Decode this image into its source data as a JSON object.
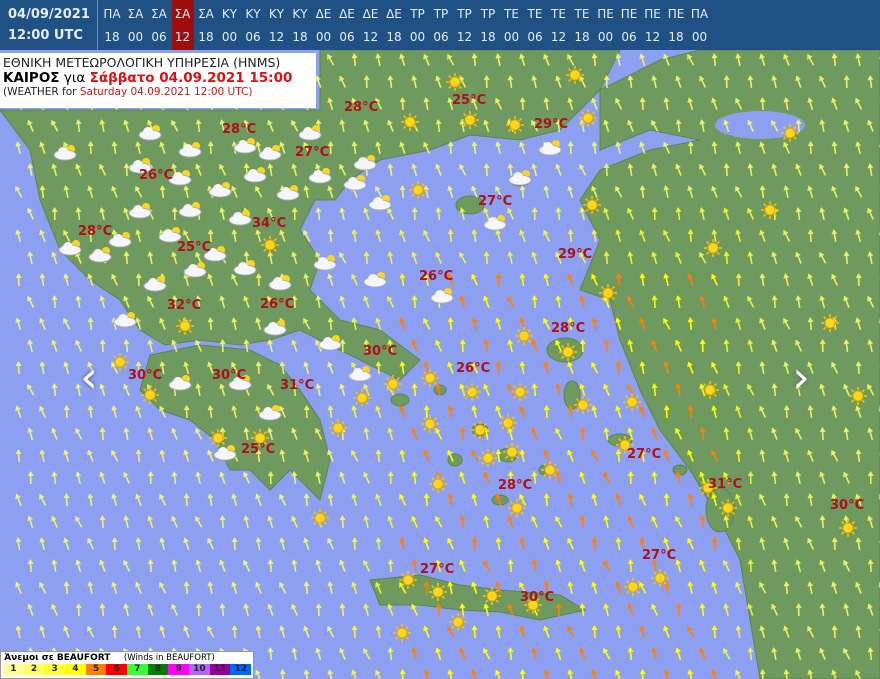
{
  "header": {
    "date": "04/09/2021",
    "time": "12:00 UTC",
    "active_index": 3,
    "slots": [
      {
        "day": "ΠΑ",
        "hour": "18"
      },
      {
        "day": "ΣΑ",
        "hour": "00"
      },
      {
        "day": "ΣΑ",
        "hour": "06"
      },
      {
        "day": "ΣΑ",
        "hour": "12"
      },
      {
        "day": "ΣΑ",
        "hour": "18"
      },
      {
        "day": "ΚΥ",
        "hour": "00"
      },
      {
        "day": "ΚΥ",
        "hour": "06"
      },
      {
        "day": "ΚΥ",
        "hour": "12"
      },
      {
        "day": "ΚΥ",
        "hour": "18"
      },
      {
        "day": "ΔΕ",
        "hour": "00"
      },
      {
        "day": "ΔΕ",
        "hour": "06"
      },
      {
        "day": "ΔΕ",
        "hour": "12"
      },
      {
        "day": "ΔΕ",
        "hour": "18"
      },
      {
        "day": "ΤΡ",
        "hour": "00"
      },
      {
        "day": "ΤΡ",
        "hour": "06"
      },
      {
        "day": "ΤΡ",
        "hour": "12"
      },
      {
        "day": "ΤΡ",
        "hour": "18"
      },
      {
        "day": "ΤΕ",
        "hour": "00"
      },
      {
        "day": "ΤΕ",
        "hour": "06"
      },
      {
        "day": "ΤΕ",
        "hour": "12"
      },
      {
        "day": "ΤΕ",
        "hour": "18"
      },
      {
        "day": "ΠΕ",
        "hour": "00"
      },
      {
        "day": "ΠΕ",
        "hour": "06"
      },
      {
        "day": "ΠΕ",
        "hour": "12"
      },
      {
        "day": "ΠΕ",
        "hour": "18"
      },
      {
        "day": "ΠΑ",
        "hour": "00"
      }
    ]
  },
  "title": {
    "agency": "ΕΘΝΙΚΗ ΜΕΤΕΩΡΟΛΟΓΙΚΗ ΥΠΗΡΕΣΙΑ (HNMS)",
    "weather_label": "ΚΑΙΡΟΣ",
    "for_label": "για",
    "local_datetime": "Σάββατο 04.09.2021 15:00",
    "en_prefix": "(WEATHER for",
    "en_datetime": "Saturday 04.09.2021 12:00 UTC)"
  },
  "temperatures": [
    "28°C",
    "28°C",
    "25°C",
    "29°C",
    "27°C",
    "26°C",
    "27°C",
    "28°C",
    "34°C",
    "25°C",
    "29°C",
    "26°C",
    "32°C",
    "26°C",
    "28°C",
    "30°C",
    "26°C",
    "30°C",
    "30°C",
    "31°C",
    "27°C",
    "25°C",
    "28°C",
    "31°C",
    "30°C",
    "27°C",
    "27°C",
    "30°C"
  ],
  "legend": {
    "title": "Άνεμοι σε BEAUFORT",
    "subtitle": "(Winds in BEAUFORT)",
    "scale": [
      {
        "v": "1",
        "c": "#ffff99"
      },
      {
        "v": "2",
        "c": "#ffff66"
      },
      {
        "v": "3",
        "c": "#ffff33"
      },
      {
        "v": "4",
        "c": "#ffff00"
      },
      {
        "v": "5",
        "c": "#ff8000"
      },
      {
        "v": "6",
        "c": "#ff0000"
      },
      {
        "v": "7",
        "c": "#33ff33"
      },
      {
        "v": "8",
        "c": "#008000"
      },
      {
        "v": "9",
        "c": "#ff00ff"
      },
      {
        "v": "10",
        "c": "#b266ff"
      },
      {
        "v": "11",
        "c": "#990099"
      },
      {
        "v": "12",
        "c": "#0066ff"
      }
    ]
  },
  "colors": {
    "sea": "#8d9ff0",
    "land": "#6f9a5f",
    "header": "#1f5185",
    "active": "#a00d0d",
    "temp": "#b0101a"
  },
  "nav": {
    "prev_icon": "chevron-left-icon",
    "next_icon": "chevron-right-icon"
  }
}
